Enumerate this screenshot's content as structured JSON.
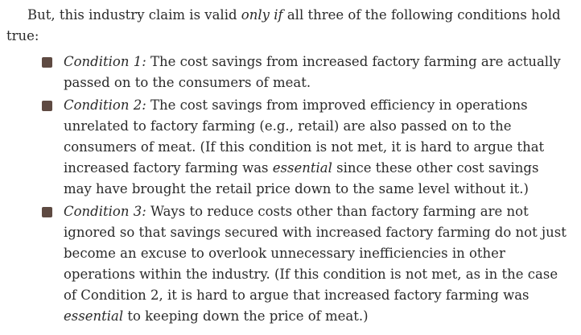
{
  "intro": {
    "part1": "But, this industry claim is valid ",
    "emph": "only if",
    "part2": " all three of the following conditions hold true:"
  },
  "conditions": [
    {
      "lead": "Condition 1:",
      "text": " The cost savings from increased factory farming are actually passed on to the consumers of meat."
    },
    {
      "lead": "Condition 2:",
      "text_a": " The cost savings from improved efficiency in operations unrelated to factory farming (e.g., retail) are also passed on to the consumers of meat. (If this condition is not met, it is hard to argue that increased factory farming was ",
      "emph": "essential",
      "text_b": " since these other cost savings may have brought the retail price down to the same level without it.)"
    },
    {
      "lead": "Condition 3:",
      "text_a": " Ways to reduce costs other than factory farming are not ignored so that savings secured with increased factory farming do not just become an excuse to overlook unnecessary inefficiencies in other operations within the industry. (If this condition is not met, as in the case of Condition 2, it is hard to argue that increased factory farming was ",
      "emph": "essential",
      "text_b": " to keeping down the price of meat.)"
    }
  ],
  "colors": {
    "bullet": "#5e4a42",
    "text": "#2a2a2a"
  }
}
